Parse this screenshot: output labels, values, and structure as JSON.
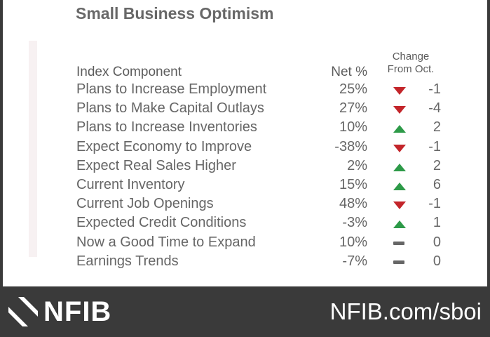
{
  "title": "Small Business Optimism",
  "header": {
    "component": "Index Component",
    "net": "Net %",
    "change_line1": "Change",
    "change_line2": "From Oct."
  },
  "rows": [
    {
      "label": "Plans to Increase Employment",
      "net": "25%",
      "direction": "down",
      "change": "-1"
    },
    {
      "label": "Plans to Make Capital Outlays",
      "net": "27%",
      "direction": "down",
      "change": "-4"
    },
    {
      "label": "Plans to Increase Inventories",
      "net": "10%",
      "direction": "up",
      "change": "2"
    },
    {
      "label": "Expect Economy to Improve",
      "net": "-38%",
      "direction": "down",
      "change": "-1"
    },
    {
      "label": "Expect Real Sales Higher",
      "net": "2%",
      "direction": "up",
      "change": "2"
    },
    {
      "label": "Current Inventory",
      "net": "15%",
      "direction": "up",
      "change": "6"
    },
    {
      "label": "Current Job Openings",
      "net": "48%",
      "direction": "down",
      "change": "-1"
    },
    {
      "label": "Expected Credit Conditions",
      "net": "-3%",
      "direction": "up",
      "change": "1"
    },
    {
      "label": "Now a Good Time to Expand",
      "net": "10%",
      "direction": "flat",
      "change": "0"
    },
    {
      "label": "Earnings Trends",
      "net": "-7%",
      "direction": "flat",
      "change": "0"
    }
  ],
  "footer": {
    "brand": "NFIB",
    "url": "NFIB.com/sboi"
  },
  "colors": {
    "up": "#2d9a48",
    "down": "#c3252a",
    "flat": "#666666",
    "footer_bg": "#3a3a3a",
    "text": "#666666"
  },
  "icons": {
    "up": "triangle-up-icon",
    "down": "triangle-down-icon",
    "flat": "dash-icon",
    "logo": "nfib-logo-mark-icon"
  }
}
